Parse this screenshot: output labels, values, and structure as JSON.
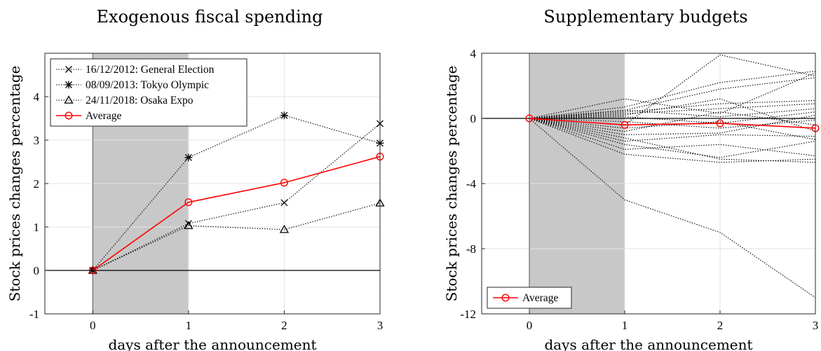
{
  "chart_data": [
    {
      "type": "line",
      "title": "Exogenous fiscal spending",
      "xlabel": "days after the announcement",
      "ylabel": "Stock prices changes percentage",
      "xlim": [
        -0.5,
        3
      ],
      "ylim": [
        -1,
        5
      ],
      "xticks": [
        0,
        1,
        2,
        3
      ],
      "yticks": [
        -1,
        0,
        1,
        2,
        3,
        4
      ],
      "shaded_region": [
        0,
        1
      ],
      "grid": true,
      "legend_position": "top-left",
      "x": [
        0,
        1,
        2,
        3
      ],
      "series": [
        {
          "name": "16/12/2012: General Election",
          "values": [
            0,
            1.08,
            1.56,
            3.38
          ],
          "color": "#000000",
          "style": "dotted",
          "marker": "x"
        },
        {
          "name": "08/09/2013: Tokyo Olympic",
          "values": [
            0,
            2.6,
            3.57,
            2.93
          ],
          "color": "#000000",
          "style": "dotted",
          "marker": "star"
        },
        {
          "name": "24/11/2018: Osaka Expo",
          "values": [
            0,
            1.03,
            0.94,
            1.55
          ],
          "color": "#000000",
          "style": "dotted",
          "marker": "triangle"
        },
        {
          "name": "Average",
          "values": [
            0,
            1.57,
            2.02,
            2.62
          ],
          "color": "#ff0000",
          "style": "solid",
          "marker": "circle"
        }
      ]
    },
    {
      "type": "line",
      "title": "Supplementary budgets",
      "xlabel": "days after the announcement",
      "ylabel": "Stock prices changes percentage",
      "xlim": [
        -0.5,
        3
      ],
      "ylim": [
        -12,
        4
      ],
      "xticks": [
        0,
        1,
        2,
        3
      ],
      "yticks": [
        -12,
        -8,
        -4,
        0,
        4
      ],
      "shaded_region": [
        0,
        1
      ],
      "grid": true,
      "legend_position": "bottom-left",
      "x": [
        0,
        1,
        2,
        3
      ],
      "series": [
        {
          "values": [
            0,
            -0.4,
            3.9,
            2.6
          ],
          "color": "#000000",
          "style": "dotted"
        },
        {
          "values": [
            0,
            1.2,
            0.3,
            2.8
          ],
          "color": "#000000",
          "style": "dotted"
        },
        {
          "values": [
            0,
            0.7,
            2.2,
            2.9
          ],
          "color": "#000000",
          "style": "dotted"
        },
        {
          "values": [
            0,
            0.5,
            1.8,
            2.5
          ],
          "color": "#000000",
          "style": "dotted"
        },
        {
          "values": [
            0,
            0.4,
            0.9,
            1.1
          ],
          "color": "#000000",
          "style": "dotted"
        },
        {
          "values": [
            0,
            0.3,
            0.6,
            0.9
          ],
          "color": "#000000",
          "style": "dotted"
        },
        {
          "values": [
            0,
            0.2,
            1.2,
            -0.8
          ],
          "color": "#000000",
          "style": "dotted"
        },
        {
          "values": [
            0,
            0.5,
            0.1,
            0.6
          ],
          "color": "#000000",
          "style": "dotted"
        },
        {
          "values": [
            0,
            0.1,
            -0.3,
            0.4
          ],
          "color": "#000000",
          "style": "dotted"
        },
        {
          "values": [
            0,
            -0.2,
            -0.6,
            -0.1
          ],
          "color": "#000000",
          "style": "dotted"
        },
        {
          "values": [
            0,
            -0.8,
            0.4,
            -0.4
          ],
          "color": "#000000",
          "style": "dotted"
        },
        {
          "values": [
            0,
            -1.0,
            -0.9,
            0.2
          ],
          "color": "#000000",
          "style": "dotted"
        },
        {
          "values": [
            0,
            -1.4,
            -1.0,
            -1.1
          ],
          "color": "#000000",
          "style": "dotted"
        },
        {
          "values": [
            0,
            -1.6,
            -2.4,
            -1.4
          ],
          "color": "#000000",
          "style": "dotted"
        },
        {
          "values": [
            0,
            -1.9,
            -1.6,
            -2.3
          ],
          "color": "#000000",
          "style": "dotted"
        },
        {
          "values": [
            0,
            -2.2,
            -2.7,
            -2.5
          ],
          "color": "#000000",
          "style": "dotted"
        },
        {
          "values": [
            0,
            -1.2,
            -2.5,
            -2.7
          ],
          "color": "#000000",
          "style": "dotted"
        },
        {
          "values": [
            0,
            -0.6,
            -0.2,
            -1.3
          ],
          "color": "#000000",
          "style": "dotted"
        },
        {
          "values": [
            0,
            -5.0,
            -7.0,
            -11.0
          ],
          "color": "#000000",
          "style": "dotted"
        },
        {
          "name": "Average",
          "values": [
            0,
            -0.4,
            -0.3,
            -0.6
          ],
          "color": "#ff0000",
          "style": "solid",
          "marker": "circle"
        }
      ]
    }
  ]
}
